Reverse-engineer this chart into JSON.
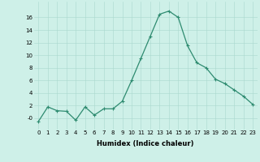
{
  "x": [
    0,
    1,
    2,
    3,
    4,
    5,
    6,
    7,
    8,
    9,
    10,
    11,
    12,
    13,
    14,
    15,
    16,
    17,
    18,
    19,
    20,
    21,
    22,
    23
  ],
  "y": [
    -0.5,
    1.8,
    1.2,
    1.1,
    -0.3,
    1.8,
    0.5,
    1.5,
    1.5,
    2.7,
    6.0,
    9.5,
    13.0,
    16.5,
    17.0,
    16.0,
    11.5,
    8.8,
    8.0,
    6.2,
    5.5,
    4.5,
    3.5,
    2.2
  ],
  "line_color": "#2e8b70",
  "marker": "+",
  "marker_size": 3,
  "marker_linewidth": 0.8,
  "bg_color": "#cef0e8",
  "grid_color": "#aad8ce",
  "xlabel": "Humidex (Indice chaleur)",
  "xlim": [
    -0.5,
    23.5
  ],
  "ylim": [
    -1.8,
    18.5
  ],
  "yticks": [
    0,
    2,
    4,
    6,
    8,
    10,
    12,
    14,
    16
  ],
  "ytick_labels": [
    "-0",
    "2",
    "4",
    "6",
    "8",
    "10",
    "12",
    "14",
    "16"
  ],
  "xticks": [
    0,
    1,
    2,
    3,
    4,
    5,
    6,
    7,
    8,
    9,
    10,
    11,
    12,
    13,
    14,
    15,
    16,
    17,
    18,
    19,
    20,
    21,
    22,
    23
  ],
  "tick_fontsize": 5,
  "xlabel_fontsize": 6,
  "linewidth": 0.9
}
